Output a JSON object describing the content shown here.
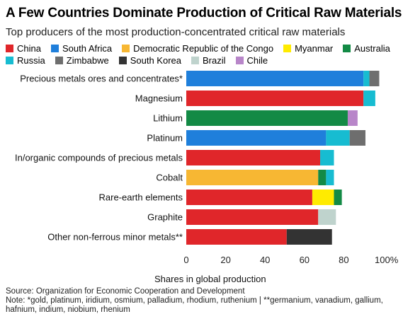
{
  "title": "A Few Countries Dominate Production of Critical Raw Materials",
  "subtitle": "Top producers of the most production-concentrated critical raw materials",
  "source": "Source: Organization for Economic Cooperation and Development",
  "note": "Note: *gold, platinum, iridium, osmium, palladium, rhodium, ruthenium | **germanium, vanadium, gallium, hafnium, indium, niobium, rhenium",
  "chart_data": {
    "type": "bar",
    "orientation": "horizontal",
    "stacked": true,
    "xlabel": "Shares in global production",
    "xlim": [
      0,
      100
    ],
    "xticks": [
      0,
      20,
      40,
      60,
      80,
      100
    ],
    "xtick_labels": [
      "0",
      "20",
      "40",
      "60",
      "80",
      "100%"
    ],
    "grid": false,
    "legend": "top",
    "categories": [
      "Precious metals ores and concentrates*",
      "Magnesium",
      "Lithium",
      "Platinum",
      "In/organic compounds of precious metals",
      "Cobalt",
      "Rare-earth elements",
      "Graphite",
      "Other non-ferrous minor metals**"
    ],
    "series": [
      {
        "name": "China",
        "color": "#e0262a",
        "values": [
          0,
          90,
          0,
          0,
          68,
          0,
          64,
          67,
          51
        ]
      },
      {
        "name": "South Africa",
        "color": "#1f7fdb",
        "values": [
          90,
          0,
          0,
          71,
          0,
          0,
          0,
          0,
          0
        ]
      },
      {
        "name": "Democratic Republic of the Congo",
        "color": "#f7b733",
        "values": [
          0,
          0,
          0,
          0,
          0,
          67,
          0,
          0,
          0
        ]
      },
      {
        "name": "Myanmar",
        "color": "#ffeb00",
        "values": [
          0,
          0,
          0,
          0,
          0,
          0,
          11,
          0,
          0
        ]
      },
      {
        "name": "Australia",
        "color": "#138a45",
        "values": [
          0,
          0,
          82,
          0,
          0,
          4,
          4,
          0,
          0
        ]
      },
      {
        "name": "Russia",
        "color": "#17bcd1",
        "values": [
          3,
          6,
          0,
          12,
          7,
          4,
          0,
          0,
          0
        ]
      },
      {
        "name": "Zimbabwe",
        "color": "#6e6e6e",
        "values": [
          5,
          0,
          0,
          8,
          0,
          0,
          0,
          0,
          0
        ]
      },
      {
        "name": "South Korea",
        "color": "#333333",
        "values": [
          0,
          0,
          0,
          0,
          0,
          0,
          0,
          0,
          23
        ]
      },
      {
        "name": "Brazil",
        "color": "#bfd3cd",
        "values": [
          0,
          0,
          0,
          0,
          0,
          0,
          0,
          9,
          0
        ]
      },
      {
        "name": "Chile",
        "color": "#b886c9",
        "values": [
          0,
          0,
          5,
          0,
          0,
          0,
          0,
          0,
          0
        ]
      }
    ]
  }
}
